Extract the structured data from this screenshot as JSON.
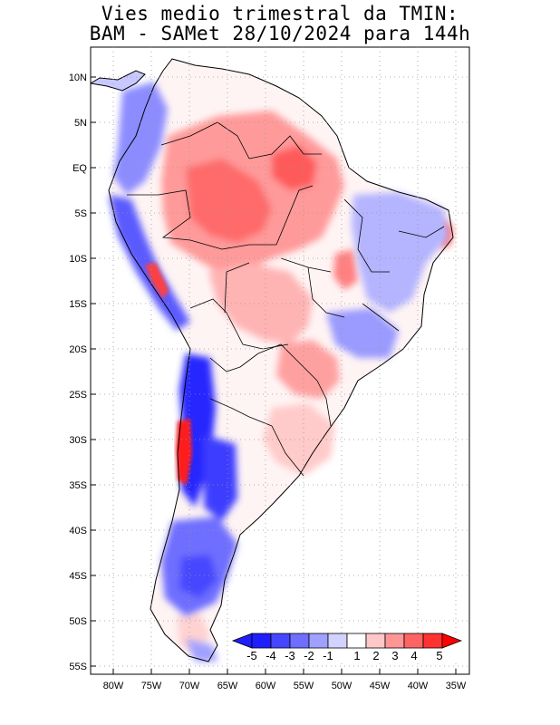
{
  "title": {
    "line1": "Vies medio trimestral da TMIN:",
    "line2": "BAM - SAMet 28/10/2024  para 144h"
  },
  "map": {
    "region": "South America",
    "lon_range": [
      -83,
      -34
    ],
    "lat_range": [
      13,
      -56
    ],
    "grid": "dotted",
    "lat_labels": [
      "10N",
      "5N",
      "EQ",
      "5S",
      "10S",
      "15S",
      "20S",
      "25S",
      "30S",
      "35S",
      "40S",
      "45S",
      "50S",
      "55S"
    ],
    "lon_labels": [
      "80W",
      "75W",
      "70W",
      "65W",
      "60W",
      "55W",
      "50W",
      "45W",
      "40W",
      "35W"
    ]
  },
  "colorbar": {
    "labels": [
      "-5",
      "-4",
      "-3",
      "-2",
      "-1",
      "1",
      "2",
      "3",
      "4",
      "5"
    ],
    "colors": [
      "#1e1eff",
      "#4646ff",
      "#6e6eff",
      "#a0a0ff",
      "#d2d2ff",
      "#ffffff",
      "#ffc8c8",
      "#ff9696",
      "#ff6464",
      "#ff3232",
      "#ff0000"
    ]
  }
}
